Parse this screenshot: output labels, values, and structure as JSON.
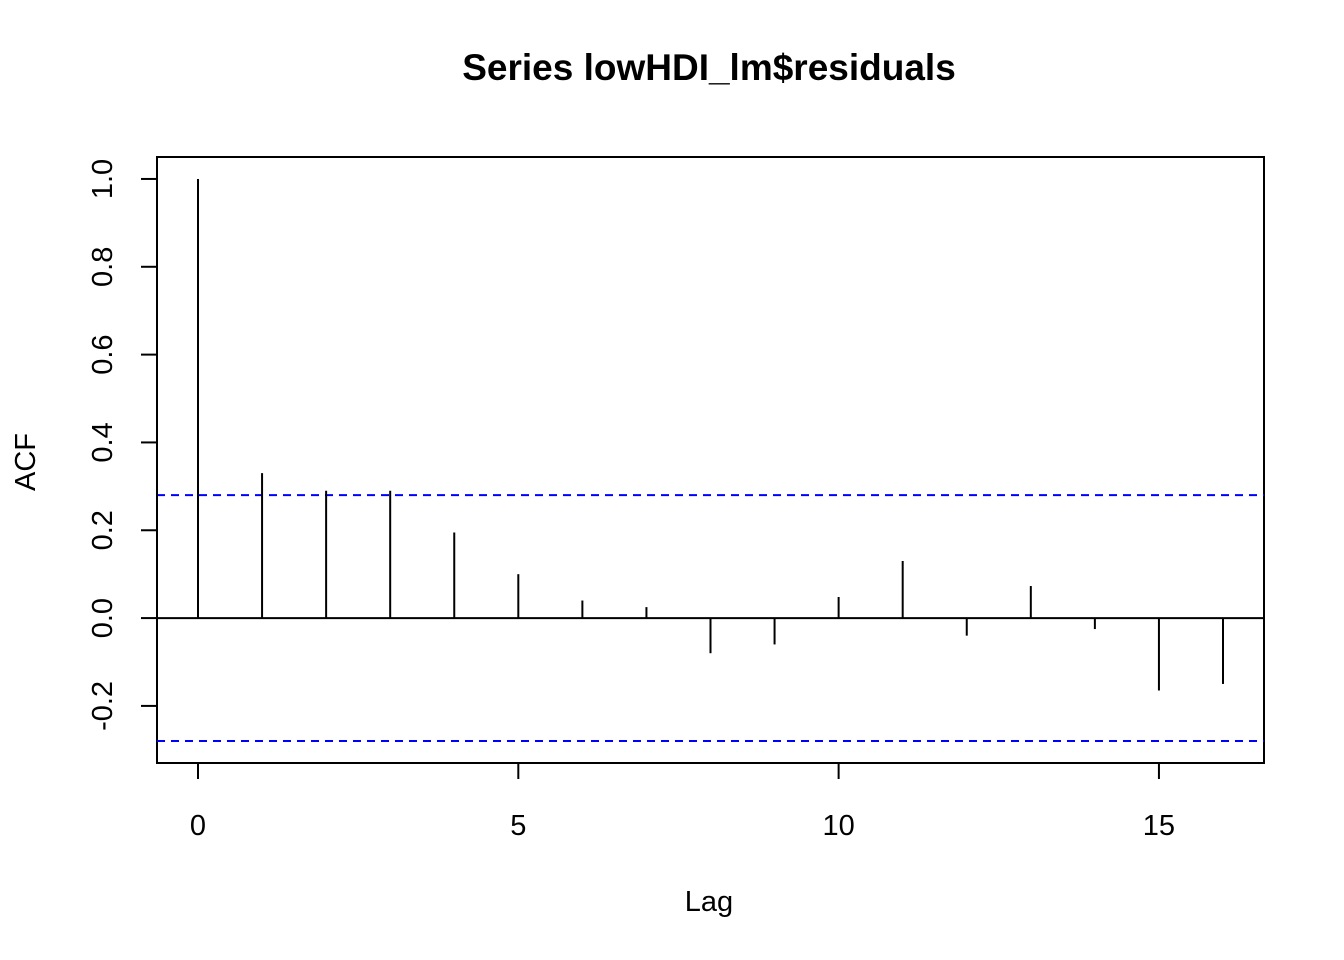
{
  "chart_data": {
    "type": "bar",
    "title": "Series  lowHDI_lm$residuals",
    "xlabel": "Lag",
    "ylabel": "ACF",
    "x": [
      0,
      1,
      2,
      3,
      4,
      5,
      6,
      7,
      8,
      9,
      10,
      11,
      12,
      13,
      14,
      15,
      16
    ],
    "values": [
      1.0,
      0.33,
      0.29,
      0.29,
      0.195,
      0.1,
      0.04,
      0.025,
      -0.08,
      -0.06,
      0.048,
      0.13,
      -0.04,
      0.073,
      -0.025,
      -0.165,
      -0.15
    ],
    "confidence_bound": 0.28,
    "xlim": [
      -0.64,
      16.64
    ],
    "ylim": [
      -0.33,
      1.05
    ],
    "x_ticks": [
      0,
      5,
      10,
      15
    ],
    "y_ticks": [
      -0.2,
      0.0,
      0.2,
      0.4,
      0.6,
      0.8,
      1.0
    ],
    "x_tick_labels": [
      "0",
      "5",
      "10",
      "15"
    ],
    "y_tick_labels": [
      "-0.2",
      "0.0",
      "0.2",
      "0.4",
      "0.6",
      "0.8",
      "1.0"
    ],
    "colors": {
      "bars": "#000000",
      "confidence_lines": "#0000ff",
      "zero_line": "#000000"
    },
    "grid": false,
    "legend": "none"
  }
}
